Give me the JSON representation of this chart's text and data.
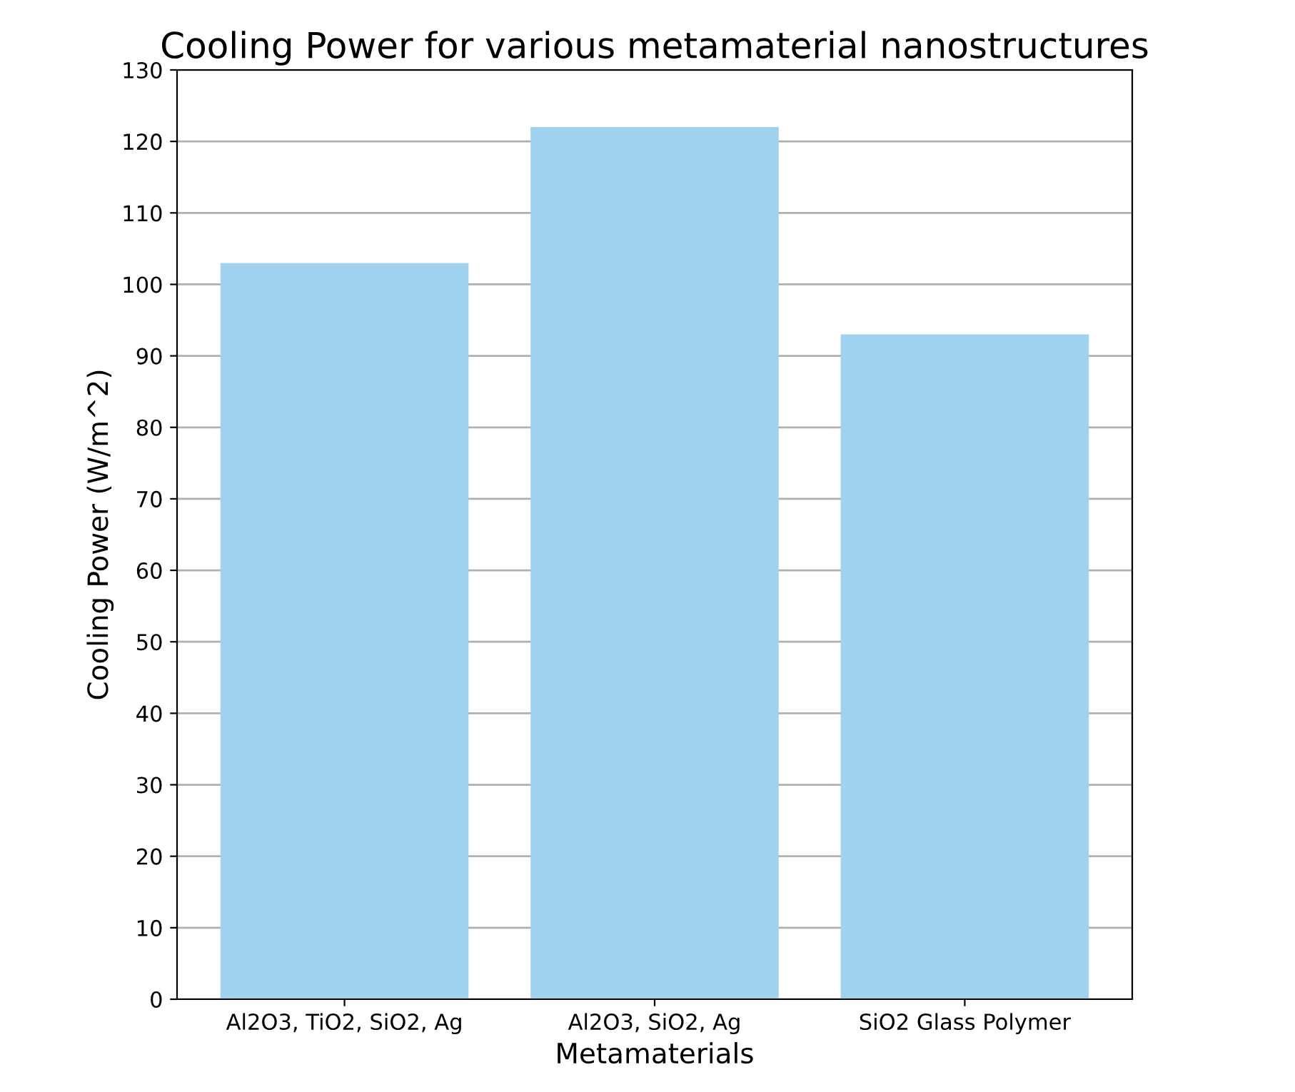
{
  "chart_data": {
    "type": "bar",
    "title": "Cooling Power for various metamaterial nanostructures",
    "xlabel": "Metamaterials",
    "ylabel": "Cooling Power (W/m^2)",
    "categories": [
      "Al2O3, TiO2, SiO2, Ag",
      "Al2O3, SiO2, Ag",
      "SiO2 Glass Polymer"
    ],
    "values": [
      103,
      122,
      93
    ],
    "color": "#9fd2ee",
    "ylim": [
      0,
      130
    ],
    "yticks": [
      0,
      10,
      20,
      30,
      40,
      50,
      60,
      70,
      80,
      90,
      100,
      110,
      120,
      130
    ],
    "grid": "y"
  }
}
